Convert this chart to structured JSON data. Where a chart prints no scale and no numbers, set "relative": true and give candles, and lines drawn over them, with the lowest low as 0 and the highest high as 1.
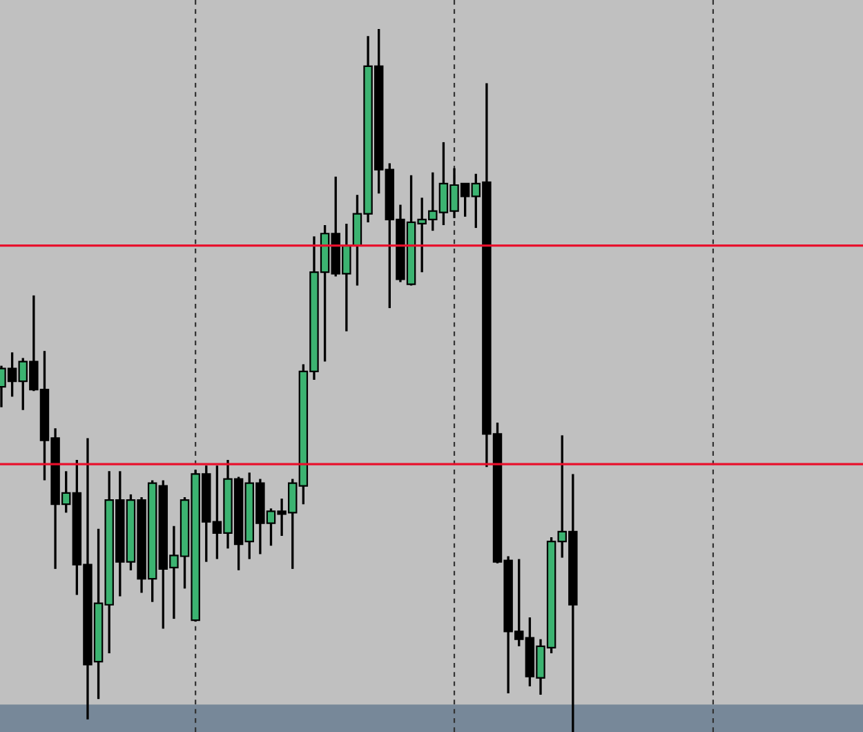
{
  "chart_data": {
    "type": "candlestick",
    "relative": true,
    "categories": [
      null,
      null,
      null,
      null,
      null,
      null,
      null,
      null,
      null,
      null,
      null,
      null,
      null,
      null,
      null,
      null,
      null,
      null,
      null,
      null,
      null,
      null,
      null,
      null,
      null,
      null,
      null,
      null,
      null,
      null,
      null,
      null,
      null,
      null,
      null,
      null,
      null,
      null,
      null,
      null,
      null,
      null,
      null,
      null,
      null,
      null,
      null,
      null,
      null,
      null,
      null,
      null,
      null,
      null
    ],
    "ohlc": [
      [
        0.491,
        0.521,
        0.462,
        0.517
      ],
      [
        0.517,
        0.54,
        0.477,
        0.499
      ],
      [
        0.499,
        0.532,
        0.458,
        0.527
      ],
      [
        0.527,
        0.621,
        0.485,
        0.487
      ],
      [
        0.487,
        0.542,
        0.358,
        0.415
      ],
      [
        0.418,
        0.432,
        0.232,
        0.324
      ],
      [
        0.324,
        0.371,
        0.312,
        0.34
      ],
      [
        0.34,
        0.387,
        0.195,
        0.238
      ],
      [
        0.238,
        0.418,
        0.018,
        0.096
      ],
      [
        0.1,
        0.289,
        0.047,
        0.183
      ],
      [
        0.181,
        0.371,
        0.112,
        0.33
      ],
      [
        0.33,
        0.371,
        0.193,
        0.242
      ],
      [
        0.242,
        0.338,
        0.23,
        0.33
      ],
      [
        0.33,
        0.334,
        0.198,
        0.218
      ],
      [
        0.218,
        0.358,
        0.185,
        0.354
      ],
      [
        0.35,
        0.358,
        0.147,
        0.232
      ],
      [
        0.234,
        0.293,
        0.161,
        0.251
      ],
      [
        0.25,
        0.334,
        0.204,
        0.33
      ],
      [
        0.159,
        0.373,
        0.157,
        0.367
      ],
      [
        0.367,
        0.379,
        0.242,
        0.299
      ],
      [
        0.299,
        0.379,
        0.246,
        0.283
      ],
      [
        0.283,
        0.387,
        0.261,
        0.36
      ],
      [
        0.36,
        0.363,
        0.23,
        0.267
      ],
      [
        0.271,
        0.369,
        0.246,
        0.354
      ],
      [
        0.354,
        0.36,
        0.253,
        0.297
      ],
      [
        0.297,
        0.318,
        0.265,
        0.314
      ],
      [
        0.314,
        0.332,
        0.279,
        0.31
      ],
      [
        0.312,
        0.36,
        0.232,
        0.354
      ],
      [
        0.35,
        0.523,
        0.324,
        0.513
      ],
      [
        0.513,
        0.705,
        0.501,
        0.654
      ],
      [
        0.654,
        0.721,
        0.527,
        0.709
      ],
      [
        0.709,
        0.79,
        0.648,
        0.652
      ],
      [
        0.652,
        0.723,
        0.57,
        0.692
      ],
      [
        0.692,
        0.764,
        0.635,
        0.737
      ],
      [
        0.737,
        0.99,
        0.725,
        0.947
      ],
      [
        0.947,
        1.0,
        0.766,
        0.8
      ],
      [
        0.8,
        0.809,
        0.603,
        0.729
      ],
      [
        0.729,
        0.75,
        0.64,
        0.644
      ],
      [
        0.637,
        0.792,
        0.635,
        0.725
      ],
      [
        0.723,
        0.76,
        0.654,
        0.729
      ],
      [
        0.729,
        0.796,
        0.713,
        0.741
      ],
      [
        0.739,
        0.839,
        0.721,
        0.78
      ],
      [
        0.741,
        0.802,
        0.731,
        0.778
      ],
      [
        0.78,
        0.78,
        0.733,
        0.762
      ],
      [
        0.762,
        0.794,
        0.717,
        0.78
      ],
      [
        0.782,
        0.923,
        0.377,
        0.424
      ],
      [
        0.424,
        0.44,
        0.24,
        0.242
      ],
      [
        0.244,
        0.25,
        0.055,
        0.143
      ],
      [
        0.143,
        0.246,
        0.122,
        0.132
      ],
      [
        0.134,
        0.163,
        0.065,
        0.079
      ],
      [
        0.077,
        0.132,
        0.053,
        0.122
      ],
      [
        0.12,
        0.277,
        0.112,
        0.271
      ],
      [
        0.271,
        0.422,
        0.248,
        0.285
      ],
      [
        0.285,
        0.367,
        0.0,
        0.181
      ]
    ],
    "bands": [
      {
        "axis": "y",
        "from": 0,
        "to": 0.039,
        "color": "#778899"
      }
    ],
    "ref_lines": [
      {
        "axis": "y",
        "value": 0.692,
        "color": "#e8102c"
      },
      {
        "axis": "y",
        "value": 0.381,
        "color": "#e8102c"
      }
    ]
  }
}
